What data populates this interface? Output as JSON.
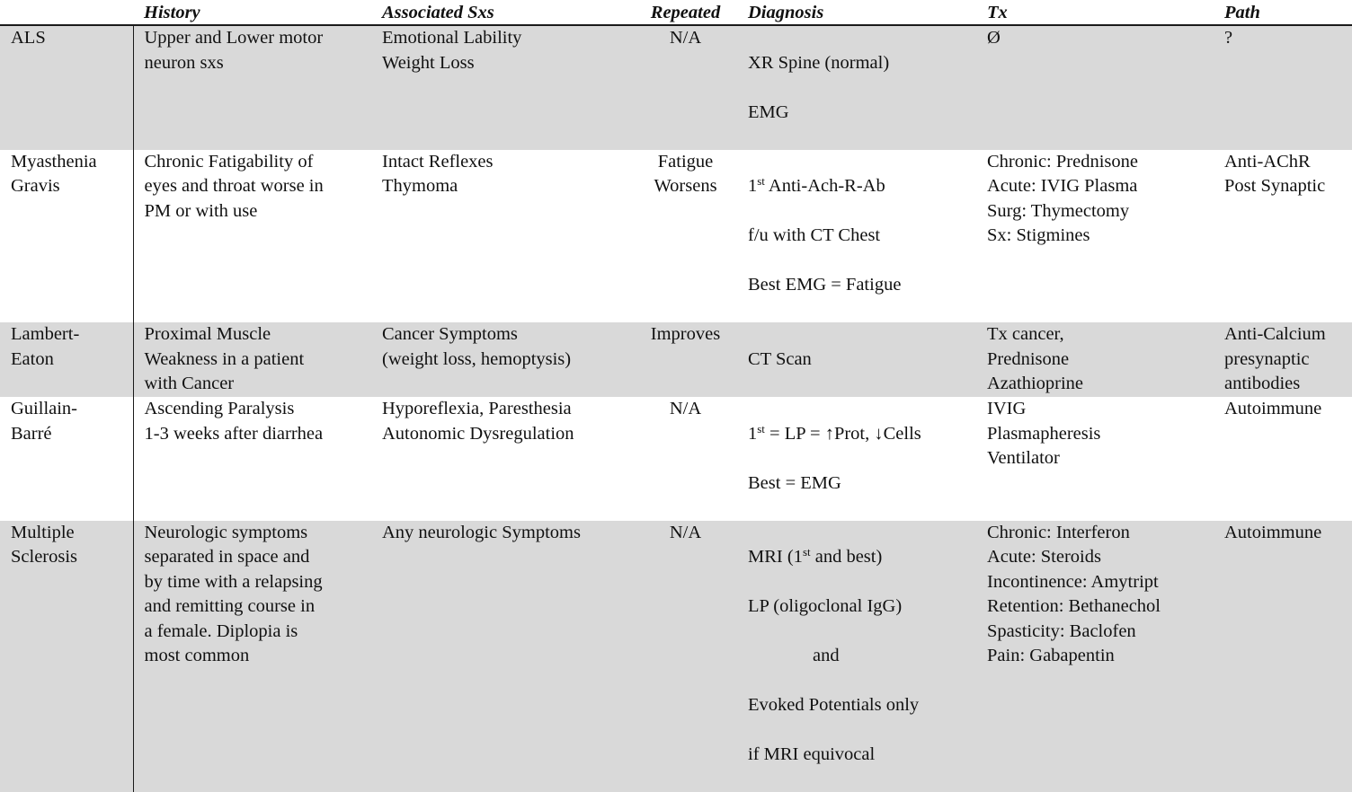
{
  "headers": {
    "disease": "",
    "history": "History",
    "associated": "Associated Sxs",
    "repeated": "Repeated",
    "diagnosis": "Diagnosis",
    "tx": "Tx",
    "path": "Path"
  },
  "rows": [
    {
      "disease": "ALS",
      "history": "Upper and Lower motor\nneuron sxs",
      "associated": "Emotional Lability\nWeight Loss",
      "repeated": "N/A",
      "diagnosis": [
        "XR Spine (normal)",
        "EMG"
      ],
      "tx": "Ø",
      "path": "?"
    },
    {
      "disease": "Myasthenia\nGravis",
      "history": "Chronic Fatigability of\neyes and throat worse in\nPM or with use",
      "associated": "Intact Reflexes\nThymoma",
      "repeated": "Fatigue\nWorsens",
      "diagnosis": [
        "1st Anti-Ach-R-Ab",
        "f/u with CT Chest",
        "Best EMG = Fatigue"
      ],
      "tx": "Chronic: Prednisone\nAcute: IVIG Plasma\nSurg: Thymectomy\nSx: Stigmines",
      "path": "Anti-AChR\nPost Synaptic"
    },
    {
      "disease": "Lambert-\nEaton",
      "history": "Proximal Muscle\nWeakness in a patient\nwith Cancer",
      "associated": "Cancer Symptoms\n (weight loss, hemoptysis)",
      "repeated": "Improves",
      "diagnosis": [
        "CT Scan"
      ],
      "tx": "Tx cancer,\nPrednisone\nAzathioprine",
      "path": "Anti-Calcium\npresynaptic\nantibodies"
    },
    {
      "disease": "Guillain-\nBarré",
      "history": "Ascending Paralysis\n1-3 weeks after diarrhea",
      "associated": "Hyporeflexia, Paresthesia\nAutonomic Dysregulation",
      "repeated": "N/A",
      "diagnosis": [
        "1st = LP = ↑Prot, ↓Cells",
        "Best = EMG"
      ],
      "tx": "IVIG\nPlasmapheresis\nVentilator",
      "path": "Autoimmune"
    },
    {
      "disease": "Multiple\nSclerosis",
      "history": "Neurologic symptoms\nseparated in space and\nby time with a relapsing\nand remitting course in\na female. Diplopia is\nmost common",
      "associated": "Any neurologic Symptoms",
      "repeated": "N/A",
      "diagnosis": [
        "MRI (1st and best)",
        "LP (oligoclonal IgG)",
        "and",
        "Evoked Potentials  only",
        "if MRI equivocal"
      ],
      "tx": "Chronic: Interferon\nAcute: Steroids\nIncontinence: Amytript\nRetention:  Bethanechol\nSpasticity: Baclofen\nPain: Gabapentin",
      "path": "Autoimmune"
    }
  ]
}
